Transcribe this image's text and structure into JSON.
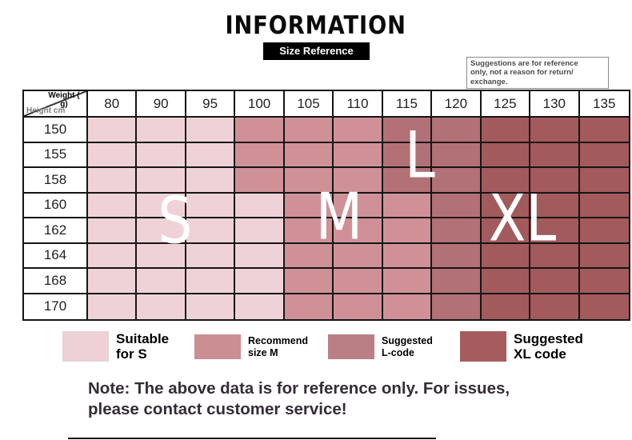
{
  "title": "INFORMATION",
  "subtitle": "Size Reference",
  "disclaimer": "Suggestions are for reference\nonly, not a reason for return/\nexchange.",
  "table": {
    "corner": {
      "weight_label": "Weight (\ng)",
      "height_label": "Height cm"
    },
    "weights": [
      "80",
      "90",
      "95",
      "100",
      "105",
      "110",
      "115",
      "120",
      "125",
      "130",
      "135"
    ],
    "heights": [
      "150",
      "155",
      "158",
      "160",
      "162",
      "164",
      "168",
      "170"
    ],
    "zone_colors": {
      "S": "#efd2d7",
      "M": "#cf9197",
      "L": "#b27176",
      "XL": "#a25a5d"
    },
    "zones": [
      [
        "S",
        "S",
        "S",
        "M",
        "M",
        "M",
        "L",
        "L",
        "XL",
        "XL",
        "XL"
      ],
      [
        "S",
        "S",
        "S",
        "M",
        "M",
        "M",
        "L",
        "L",
        "XL",
        "XL",
        "XL"
      ],
      [
        "S",
        "S",
        "S",
        "M",
        "M",
        "M",
        "L",
        "L",
        "XL",
        "XL",
        "XL"
      ],
      [
        "S",
        "S",
        "S",
        "S",
        "M",
        "M",
        "M",
        "L",
        "XL",
        "XL",
        "XL"
      ],
      [
        "S",
        "S",
        "S",
        "S",
        "M",
        "M",
        "M",
        "L",
        "XL",
        "XL",
        "XL"
      ],
      [
        "S",
        "S",
        "S",
        "S",
        "M",
        "M",
        "M",
        "L",
        "XL",
        "XL",
        "XL"
      ],
      [
        "S",
        "S",
        "S",
        "S",
        "M",
        "M",
        "M",
        "L",
        "XL",
        "XL",
        "XL"
      ],
      [
        "S",
        "S",
        "S",
        "S",
        "M",
        "M",
        "M",
        "L",
        "XL",
        "XL",
        "XL"
      ]
    ]
  },
  "overlay_letters": [
    "S",
    "M",
    "L",
    "XL"
  ],
  "legend": [
    {
      "label": "Suitable\nfor S",
      "color": "#edd1d6"
    },
    {
      "label": "Recommend\nsize M",
      "color": "#cb8e93"
    },
    {
      "label": "Suggested\nL-code",
      "color": "#b97f84"
    },
    {
      "label": "Suggested\nXL code",
      "color": "#a65c5f"
    }
  ],
  "note": "Note: The above data is for reference only. For issues,\nplease contact customer service!",
  "chart_data": {
    "type": "heatmap",
    "title": "Size Reference",
    "x_label": "Weight (g)",
    "y_label": "Height cm",
    "x": [
      80,
      90,
      95,
      100,
      105,
      110,
      115,
      120,
      125,
      130,
      135
    ],
    "y": [
      150,
      155,
      158,
      160,
      162,
      164,
      168,
      170
    ],
    "values": [
      [
        "S",
        "S",
        "S",
        "M",
        "M",
        "M",
        "L",
        "L",
        "XL",
        "XL",
        "XL"
      ],
      [
        "S",
        "S",
        "S",
        "M",
        "M",
        "M",
        "L",
        "L",
        "XL",
        "XL",
        "XL"
      ],
      [
        "S",
        "S",
        "S",
        "M",
        "M",
        "M",
        "L",
        "L",
        "XL",
        "XL",
        "XL"
      ],
      [
        "S",
        "S",
        "S",
        "S",
        "M",
        "M",
        "M",
        "L",
        "XL",
        "XL",
        "XL"
      ],
      [
        "S",
        "S",
        "S",
        "S",
        "M",
        "M",
        "M",
        "L",
        "XL",
        "XL",
        "XL"
      ],
      [
        "S",
        "S",
        "S",
        "S",
        "M",
        "M",
        "M",
        "L",
        "XL",
        "XL",
        "XL"
      ],
      [
        "S",
        "S",
        "S",
        "S",
        "M",
        "M",
        "M",
        "L",
        "XL",
        "XL",
        "XL"
      ],
      [
        "S",
        "S",
        "S",
        "S",
        "M",
        "M",
        "M",
        "L",
        "XL",
        "XL",
        "XL"
      ]
    ],
    "legend": [
      "Suitable for S",
      "Recommend size M",
      "Suggested L-code",
      "Suggested XL code"
    ]
  }
}
